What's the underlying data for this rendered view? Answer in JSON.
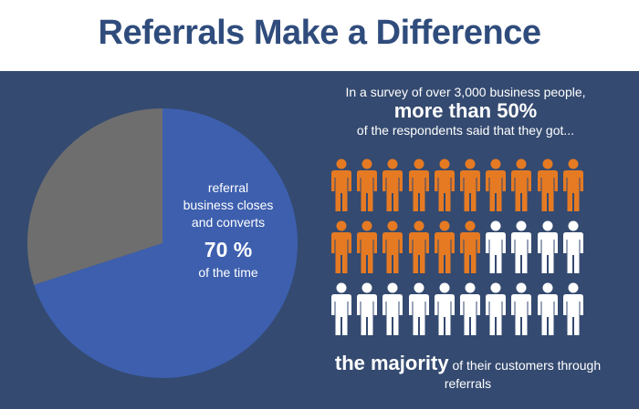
{
  "header": {
    "title": "Referrals Make a Difference"
  },
  "pie": {
    "line1": "referral",
    "line2": "business closes",
    "line3": "and converts",
    "value_label": "70 %",
    "foot": "of the time",
    "percent_blue": 70,
    "colors": {
      "blue": "#3d5fae",
      "gray": "#6e6e6e"
    }
  },
  "survey": {
    "line1": "In a survey of over 3,000 business people,",
    "emphasis": "more than 50%",
    "line3": "of the respondents said that they got..."
  },
  "people": {
    "total": 30,
    "highlighted": 16,
    "columns": 10,
    "colors": {
      "highlighted": "#e57a23",
      "default": "#ffffff"
    },
    "icon": "person-icon"
  },
  "majority": {
    "big": "the majority",
    "rest": " of their customers through",
    "line2": "referrals"
  }
}
